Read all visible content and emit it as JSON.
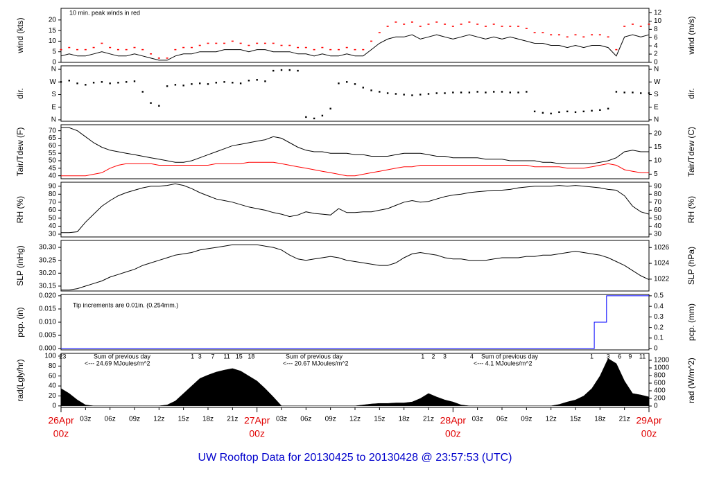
{
  "figure": {
    "title": "UW Rooftop Data for 20130425  to  20130428 @ 23:57:53  (UTC)",
    "xlim": [
      0,
      72
    ],
    "x": [
      0,
      1,
      2,
      3,
      4,
      5,
      6,
      7,
      8,
      9,
      10,
      11,
      12,
      13,
      14,
      15,
      16,
      17,
      18,
      19,
      20,
      21,
      22,
      23,
      24,
      25,
      26,
      27,
      28,
      29,
      30,
      31,
      32,
      33,
      34,
      35,
      36,
      37,
      38,
      39,
      40,
      41,
      42,
      43,
      44,
      45,
      46,
      47,
      48,
      49,
      50,
      51,
      52,
      53,
      54,
      55,
      56,
      57,
      58,
      59,
      60,
      61,
      62,
      63,
      64,
      65,
      66,
      67,
      68,
      69,
      70,
      71,
      72
    ],
    "xticks": [
      {
        "value": 3,
        "label": "03z"
      },
      {
        "value": 6,
        "label": "06z"
      },
      {
        "value": 9,
        "label": "09z"
      },
      {
        "value": 12,
        "label": "12z"
      },
      {
        "value": 15,
        "label": "15z"
      },
      {
        "value": 18,
        "label": "18z"
      },
      {
        "value": 21,
        "label": "21z"
      },
      {
        "value": 27,
        "label": "03z"
      },
      {
        "value": 30,
        "label": "06z"
      },
      {
        "value": 33,
        "label": "09z"
      },
      {
        "value": 36,
        "label": "12z"
      },
      {
        "value": 39,
        "label": "15z"
      },
      {
        "value": 42,
        "label": "18z"
      },
      {
        "value": 45,
        "label": "21z"
      },
      {
        "value": 51,
        "label": "03z"
      },
      {
        "value": 54,
        "label": "06z"
      },
      {
        "value": 57,
        "label": "09z"
      },
      {
        "value": 60,
        "label": "12z"
      },
      {
        "value": 63,
        "label": "15z"
      },
      {
        "value": 66,
        "label": "18z"
      },
      {
        "value": 69,
        "label": "21z"
      }
    ],
    "major_ticks": [
      {
        "value": 0,
        "label": "26Apr",
        "sublabel": "00z"
      },
      {
        "value": 24,
        "label": "27Apr",
        "sublabel": "00z"
      },
      {
        "value": 48,
        "label": "28Apr",
        "sublabel": "00z"
      },
      {
        "value": 72,
        "label": "29Apr",
        "sublabel": "00z"
      }
    ]
  },
  "chart_data": [
    {
      "type": "line",
      "ylabel": "wind (kts)",
      "y2label": "wind (m/s)",
      "ylim": [
        0,
        25.5
      ],
      "yticks": [
        0,
        5,
        10,
        15,
        20
      ],
      "y2lim": [
        0,
        13.1
      ],
      "y2ticks": [
        0,
        2,
        4,
        6,
        8,
        10,
        12
      ],
      "annotations": [
        "10 min. peak winds in red"
      ],
      "series": [
        {
          "name": "wind",
          "color": "#000000",
          "marker": "line",
          "values": [
            3,
            4,
            3,
            3,
            4,
            5,
            4,
            3,
            3,
            4,
            3,
            2,
            1,
            1,
            3,
            4,
            4,
            5,
            5,
            5,
            6,
            6,
            6,
            5,
            6,
            6,
            5,
            5,
            5,
            4,
            4,
            3,
            4,
            3,
            3,
            4,
            3,
            3,
            6,
            9,
            11,
            12,
            12,
            13,
            11,
            12,
            13,
            12,
            11,
            12,
            13,
            12,
            11,
            12,
            11,
            12,
            11,
            10,
            9,
            9,
            8,
            8,
            7,
            8,
            7,
            8,
            8,
            7,
            3,
            12,
            13,
            12,
            13
          ]
        },
        {
          "name": "10 min. peak",
          "color": "#ff0000",
          "marker": "dash",
          "values": [
            6,
            7,
            6,
            6,
            7,
            9,
            7,
            6,
            6,
            7,
            6,
            4,
            2,
            2,
            6,
            7,
            7,
            8,
            9,
            9,
            9,
            10,
            9,
            8,
            9,
            9,
            9,
            8,
            8,
            7,
            7,
            6,
            7,
            6,
            6,
            7,
            6,
            6,
            10,
            14,
            17,
            19,
            18,
            19,
            17,
            18,
            19,
            18,
            17,
            18,
            19,
            18,
            17,
            18,
            17,
            17,
            17,
            16,
            14,
            14,
            13,
            13,
            12,
            13,
            12,
            13,
            13,
            12,
            6,
            17,
            18,
            17,
            18
          ]
        }
      ]
    },
    {
      "type": "scatter",
      "ylabel": "dir.",
      "y2label": "dir.",
      "ylim": [
        -10,
        385
      ],
      "yticks": [
        {
          "value": 0,
          "label": "N"
        },
        {
          "value": 90,
          "label": "E"
        },
        {
          "value": 180,
          "label": "S"
        },
        {
          "value": 270,
          "label": "W"
        },
        {
          "value": 360,
          "label": "N"
        }
      ],
      "y2lim": [
        -10,
        385
      ],
      "y2ticks": [
        {
          "value": 0,
          "label": "N"
        },
        {
          "value": 90,
          "label": "E"
        },
        {
          "value": 180,
          "label": "S"
        },
        {
          "value": 270,
          "label": "W"
        },
        {
          "value": 360,
          "label": "N"
        }
      ],
      "series": [
        {
          "name": "dir",
          "color": "#000000",
          "marker": "dot",
          "values": [
            270,
            280,
            260,
            250,
            265,
            270,
            260,
            265,
            270,
            275,
            200,
            120,
            100,
            240,
            250,
            245,
            255,
            260,
            255,
            265,
            270,
            265,
            260,
            280,
            285,
            275,
            350,
            355,
            355,
            350,
            20,
            10,
            30,
            80,
            260,
            270,
            255,
            230,
            210,
            200,
            190,
            185,
            180,
            175,
            180,
            185,
            190,
            190,
            195,
            195,
            195,
            200,
            195,
            200,
            200,
            195,
            195,
            200,
            60,
            50,
            45,
            55,
            60,
            55,
            60,
            65,
            70,
            80,
            200,
            195,
            195,
            190,
            190
          ]
        }
      ]
    },
    {
      "type": "line",
      "ylabel": "Tair/Tdew (F)",
      "y2label": "Tair/Tdew (C)",
      "ylim": [
        38,
        74
      ],
      "yticks": [
        40,
        45,
        50,
        55,
        60,
        65,
        70
      ],
      "y2lim": [
        3.3,
        23.3
      ],
      "y2ticks": [
        5,
        10,
        15,
        20
      ],
      "series": [
        {
          "name": "Tair",
          "color": "#000000",
          "marker": "line",
          "values": [
            72,
            72,
            70,
            66,
            62,
            59,
            57,
            56,
            55,
            54,
            53,
            52,
            51,
            50,
            49,
            49,
            50,
            52,
            54,
            56,
            58,
            60,
            61,
            62,
            63,
            64,
            66,
            65,
            62,
            59,
            57,
            56,
            56,
            55,
            55,
            55,
            54,
            54,
            53,
            53,
            53,
            54,
            55,
            55,
            55,
            54,
            53,
            53,
            52,
            52,
            52,
            52,
            51,
            51,
            51,
            50,
            50,
            50,
            50,
            49,
            49,
            48,
            48,
            48,
            48,
            48,
            49,
            50,
            52,
            56,
            57,
            56,
            56
          ]
        },
        {
          "name": "Tdew",
          "color": "#ff0000",
          "marker": "line",
          "values": [
            40,
            40,
            40,
            40,
            41,
            42,
            45,
            47,
            48,
            48,
            48,
            48,
            47,
            47,
            47,
            47,
            47,
            47,
            47,
            48,
            48,
            48,
            48,
            49,
            49,
            49,
            49,
            48,
            47,
            46,
            45,
            44,
            43,
            42,
            41,
            40,
            40,
            41,
            42,
            43,
            44,
            45,
            46,
            46,
            47,
            47,
            47,
            47,
            47,
            47,
            47,
            47,
            47,
            47,
            47,
            47,
            47,
            47,
            46,
            46,
            46,
            46,
            45,
            45,
            45,
            46,
            47,
            48,
            47,
            44,
            43,
            42,
            42
          ]
        }
      ]
    },
    {
      "type": "line",
      "ylabel": "RH (%)",
      "y2label": "RH (%)",
      "ylim": [
        26.5,
        95
      ],
      "yticks": [
        30,
        40,
        50,
        60,
        70,
        80,
        90
      ],
      "y2lim": [
        26.5,
        95
      ],
      "y2ticks": [
        30,
        40,
        50,
        60,
        70,
        80,
        90
      ],
      "series": [
        {
          "name": "RH",
          "color": "#000000",
          "marker": "line",
          "values": [
            32,
            32,
            33,
            45,
            55,
            65,
            72,
            78,
            82,
            85,
            88,
            90,
            90,
            91,
            93,
            91,
            87,
            82,
            78,
            74,
            72,
            70,
            67,
            64,
            62,
            60,
            57,
            55,
            52,
            54,
            58,
            56,
            55,
            54,
            62,
            57,
            57,
            58,
            58,
            60,
            62,
            66,
            70,
            72,
            70,
            71,
            74,
            77,
            79,
            80,
            82,
            83,
            84,
            85,
            85,
            86,
            88,
            89,
            90,
            90,
            90,
            91,
            90,
            91,
            90,
            89,
            88,
            86,
            85,
            78,
            65,
            58,
            55
          ]
        }
      ]
    },
    {
      "type": "line",
      "ylabel": "SLP (inHg)",
      "y2label": "SLP (hPa)",
      "ylim": [
        30.131,
        30.327
      ],
      "yticks": [
        30.15,
        {
          "value": 30.2,
          "label": "30.20"
        },
        30.25,
        {
          "value": 30.3,
          "label": "30.30"
        }
      ],
      "y2lim": [
        1020.5,
        1026.9
      ],
      "y2ticks": [
        1022,
        1024,
        1026
      ],
      "series": [
        {
          "name": "SLP",
          "color": "#000000",
          "marker": "line",
          "values": [
            30.135,
            30.135,
            30.14,
            30.15,
            30.16,
            30.17,
            30.185,
            30.195,
            30.205,
            30.215,
            30.23,
            30.24,
            30.25,
            30.26,
            30.27,
            30.275,
            30.28,
            30.29,
            30.295,
            30.3,
            30.305,
            30.31,
            30.31,
            30.31,
            30.31,
            30.305,
            30.3,
            30.29,
            30.27,
            30.255,
            30.25,
            30.255,
            30.26,
            30.265,
            30.26,
            30.25,
            30.245,
            30.24,
            30.235,
            30.23,
            30.23,
            30.24,
            30.26,
            30.275,
            30.28,
            30.275,
            30.27,
            30.26,
            30.255,
            30.255,
            30.25,
            30.25,
            30.25,
            30.255,
            30.26,
            30.26,
            30.26,
            30.265,
            30.265,
            30.27,
            30.27,
            30.275,
            30.28,
            30.285,
            30.28,
            30.275,
            30.27,
            30.26,
            30.245,
            30.23,
            30.21,
            30.19,
            30.175
          ]
        }
      ]
    },
    {
      "type": "step",
      "ylabel": "pcp. (in)",
      "y2label": "pcp. (mm)",
      "ylim": [
        -0.0005,
        0.0205
      ],
      "yticks": [
        {
          "value": 0,
          "label": "0.000"
        },
        {
          "value": 0.005,
          "label": "0.005"
        },
        {
          "value": 0.01,
          "label": "0.010"
        },
        {
          "value": 0.015,
          "label": "0.015"
        },
        {
          "value": 0.02,
          "label": "0.020"
        }
      ],
      "y2lim": [
        -0.0125,
        0.5125
      ],
      "y2ticks": [
        0,
        0.1,
        0.2,
        0.3,
        0.4,
        0.5
      ],
      "annotations": [
        "Tip increments are 0.01in. (0.254mm.)"
      ],
      "x": [
        0,
        65.3,
        66.8,
        72
      ],
      "series": [
        {
          "name": "pcp",
          "color": "#0000ff",
          "marker": "step",
          "values": [
            0,
            0.01,
            0.02,
            0.02
          ]
        }
      ]
    },
    {
      "type": "area",
      "ylabel": "rad(Lgly/hr)",
      "y2label": "rad (W/m^2)",
      "ylim": [
        -3,
        105.5
      ],
      "yticks": [
        0,
        20,
        40,
        60,
        80,
        100
      ],
      "y2lim": [
        -36,
        1382
      ],
      "y2ticks": [
        0,
        200,
        400,
        600,
        800,
        1000,
        1200
      ],
      "annotations": [
        "Sum of previous day",
        "<--- 24.69 MJoules/m^2",
        "Sum of previous day",
        "<--- 20.67 MJoules/m^2",
        "Sum of previous day",
        "<--- 4.1 MJoules/m^2"
      ],
      "markers": [
        {
          "x": 0.2,
          "label": "23"
        },
        {
          "x": 16.1,
          "label": "1"
        },
        {
          "x": 17,
          "label": "3"
        },
        {
          "x": 18.6,
          "label": "7"
        },
        {
          "x": 20.3,
          "label": "11"
        },
        {
          "x": 21.8,
          "label": "15"
        },
        {
          "x": 23.3,
          "label": "18"
        },
        {
          "x": 44.3,
          "label": "1"
        },
        {
          "x": 45.6,
          "label": "2"
        },
        {
          "x": 47,
          "label": "3"
        },
        {
          "x": 50.3,
          "label": "4"
        },
        {
          "x": 65,
          "label": "1"
        },
        {
          "x": 67,
          "label": "3"
        },
        {
          "x": 68.4,
          "label": "6"
        },
        {
          "x": 69.7,
          "label": "9"
        },
        {
          "x": 71.2,
          "label": "11"
        }
      ],
      "series": [
        {
          "name": "rad",
          "color": "#000000",
          "marker": "area",
          "values": [
            35,
            25,
            12,
            2,
            0,
            0,
            0,
            0,
            0,
            0,
            0,
            0,
            0,
            2,
            10,
            25,
            40,
            55,
            62,
            68,
            72,
            75,
            70,
            60,
            50,
            35,
            18,
            0,
            0,
            0,
            0,
            0,
            0,
            0,
            0,
            0,
            0,
            2,
            4,
            5,
            5,
            6,
            6,
            8,
            15,
            25,
            18,
            12,
            8,
            2,
            0,
            0,
            0,
            0,
            0,
            0,
            0,
            0,
            0,
            0,
            0,
            3,
            8,
            12,
            20,
            35,
            60,
            95,
            85,
            50,
            25,
            22,
            18
          ]
        }
      ]
    }
  ]
}
